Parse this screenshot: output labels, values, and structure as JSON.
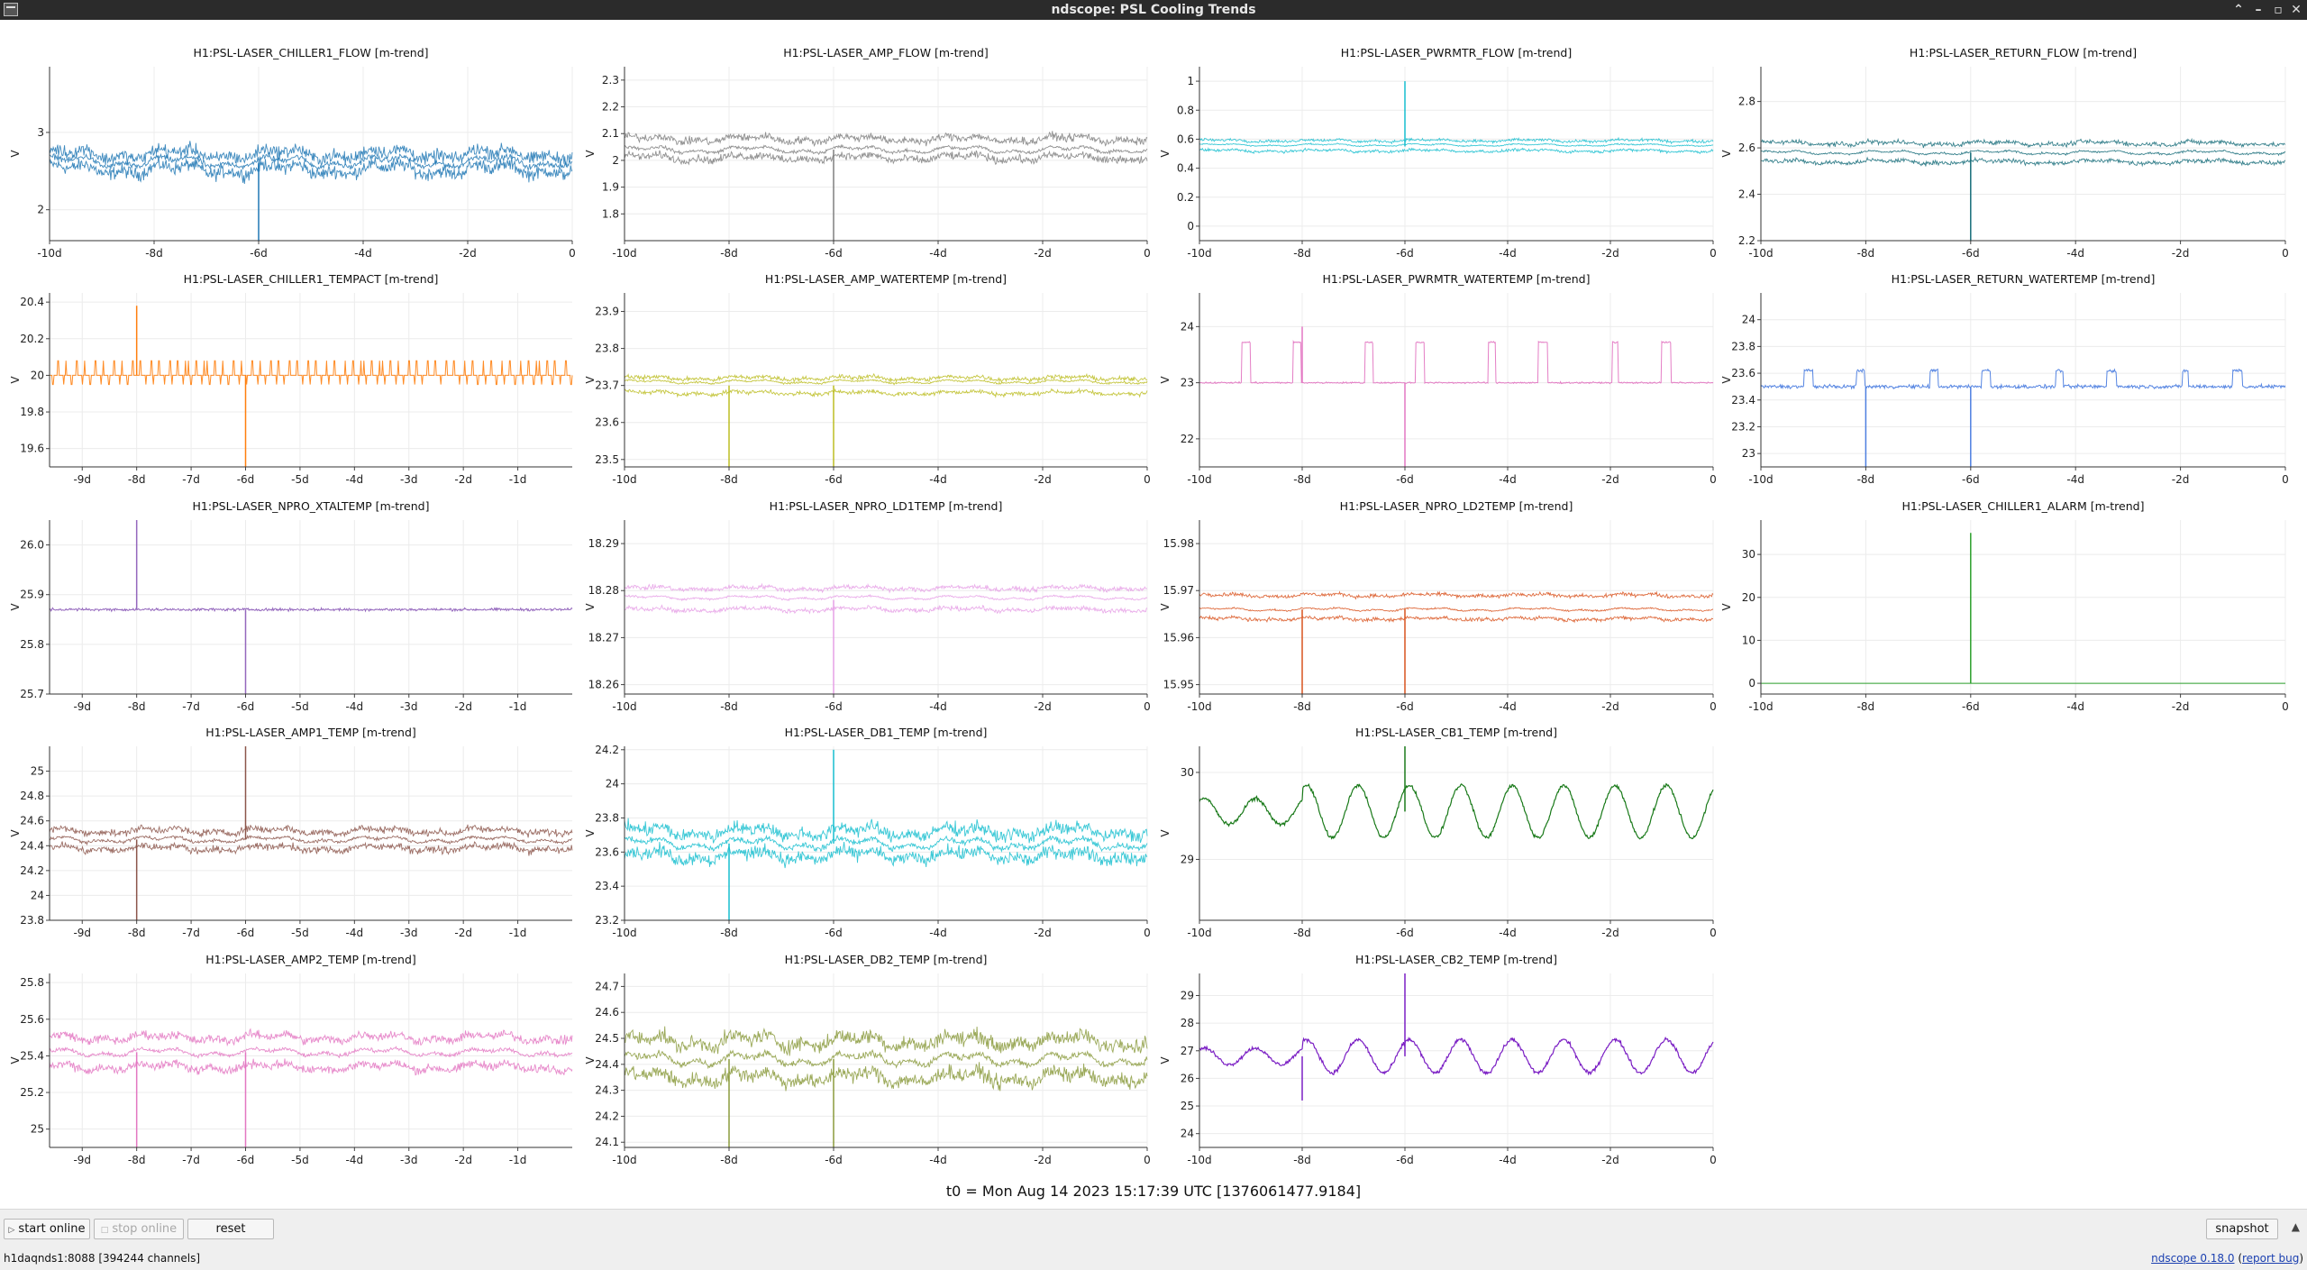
{
  "window": {
    "title": "ndscope: PSL Cooling Trends"
  },
  "footer": {
    "t0_text": "t0 = Mon Aug 14 2023 15:17:39 UTC [1376061477.9184]"
  },
  "buttons": {
    "start_online": "start online",
    "stop_online": "stop online",
    "reset": "reset",
    "snapshot": "snapshot"
  },
  "status": {
    "server": "h1daqnds1:8088  [394244 channels]",
    "version": "ndscope 0.18.0",
    "report_bug": "report bug"
  },
  "axis": {
    "ylabel": "V"
  },
  "plots": [
    {
      "title": "H1:PSL-LASER_CHILLER1_FLOW [m-trend]",
      "color": "#1f77b4",
      "ylim": [
        1.6,
        3.85
      ],
      "yticks": [
        "2",
        "3"
      ],
      "xticks": [
        "-10d",
        "-8d",
        "-6d",
        "-4d",
        "-2d",
        "0"
      ],
      "base": 2.6,
      "noise": 0.09,
      "style": "bands",
      "bands": [
        2.52,
        2.62,
        2.72
      ],
      "spikes": [
        [
          -6,
          1.6
        ]
      ]
    },
    {
      "title": "H1:PSL-LASER_AMP_FLOW [m-trend]",
      "color": "#7f7f7f",
      "ylim": [
        1.7,
        2.35
      ],
      "yticks": [
        "1.8",
        "1.9",
        "2",
        "2.1",
        "2.2",
        "2.3"
      ],
      "xticks": [
        "-10d",
        "-8d",
        "-6d",
        "-4d",
        "-2d",
        "0"
      ],
      "base": 2.04,
      "noise": 0.015,
      "style": "bands",
      "bands": [
        2.01,
        2.04,
        2.08
      ],
      "spikes": [
        [
          -6,
          1.7
        ]
      ]
    },
    {
      "title": "H1:PSL-LASER_PWRMTR_FLOW [m-trend]",
      "color": "#17becf",
      "ylim": [
        -0.1,
        1.1
      ],
      "yticks": [
        "0",
        "0.2",
        "0.4",
        "0.6",
        "0.8",
        "1"
      ],
      "xticks": [
        "-10d",
        "-8d",
        "-6d",
        "-4d",
        "-2d",
        "0"
      ],
      "base": 0.55,
      "noise": 0.01,
      "style": "bands",
      "bands": [
        0.52,
        0.56,
        0.59
      ],
      "spikes": [
        [
          -6,
          1.0
        ]
      ]
    },
    {
      "title": "H1:PSL-LASER_RETURN_FLOW [m-trend]",
      "color": "#176d7a",
      "ylim": [
        2.2,
        2.95
      ],
      "yticks": [
        "2.2",
        "2.4",
        "2.6",
        "2.8"
      ],
      "xticks": [
        "-10d",
        "-8d",
        "-6d",
        "-4d",
        "-2d",
        "0"
      ],
      "base": 2.58,
      "noise": 0.01,
      "style": "bands",
      "bands": [
        2.54,
        2.58,
        2.62
      ],
      "spikes": [
        [
          -6,
          2.2
        ]
      ]
    },
    {
      "title": "H1:PSL-LASER_CHILLER1_TEMPACT [m-trend]",
      "color": "#ff7f0e",
      "ylim": [
        19.5,
        20.45
      ],
      "yticks": [
        "19.6",
        "19.8",
        "20",
        "20.2",
        "20.4"
      ],
      "xticks": [
        "-9d",
        "-8d",
        "-7d",
        "-6d",
        "-5d",
        "-4d",
        "-3d",
        "-2d",
        "-1d"
      ],
      "base": 20.0,
      "noise": 0.0,
      "style": "steps",
      "levels": [
        19.95,
        20.0,
        20.08
      ],
      "spikes": [
        [
          -8,
          20.38
        ],
        [
          -6,
          19.5
        ]
      ]
    },
    {
      "title": "H1:PSL-LASER_AMP_WATERTEMP [m-trend]",
      "color": "#bcbd22",
      "ylim": [
        23.48,
        23.95
      ],
      "yticks": [
        "23.5",
        "23.6",
        "23.7",
        "23.8",
        "23.9"
      ],
      "xticks": [
        "-10d",
        "-8d",
        "-6d",
        "-4d",
        "-2d",
        "0"
      ],
      "base": 23.7,
      "noise": 0.006,
      "style": "bands",
      "bands": [
        23.68,
        23.71,
        23.72
      ],
      "spikes": [
        [
          -8,
          23.48
        ],
        [
          -6,
          23.48
        ]
      ]
    },
    {
      "title": "H1:PSL-LASER_PWRMTR_WATERTEMP [m-trend]",
      "color": "#e377c2",
      "ylim": [
        21.5,
        24.6
      ],
      "yticks": [
        "22",
        "23",
        "24"
      ],
      "xticks": [
        "-10d",
        "-8d",
        "-6d",
        "-4d",
        "-2d",
        "0"
      ],
      "base": 23.0,
      "noise": 0.02,
      "style": "pulses",
      "pulse": 23.72,
      "spikes": [
        [
          -8,
          24.0
        ],
        [
          -6,
          21.5
        ]
      ]
    },
    {
      "title": "H1:PSL-LASER_RETURN_WATERTEMP [m-trend]",
      "color": "#4e7fe0",
      "ylim": [
        22.9,
        24.2
      ],
      "yticks": [
        "23",
        "23.2",
        "23.4",
        "23.6",
        "23.8",
        "24"
      ],
      "xticks": [
        "-10d",
        "-8d",
        "-6d",
        "-4d",
        "-2d",
        "0"
      ],
      "base": 23.5,
      "noise": 0.02,
      "style": "pulses",
      "pulse": 23.62,
      "spikes": [
        [
          -8,
          22.9
        ],
        [
          -6,
          22.9
        ]
      ]
    },
    {
      "title": "H1:PSL-LASER_NPRO_XTALTEMP [m-trend]",
      "color": "#9467bd",
      "ylim": [
        25.7,
        26.05
      ],
      "yticks": [
        "25.7",
        "25.8",
        "25.9",
        "26.0"
      ],
      "xticks": [
        "-9d",
        "-8d",
        "-7d",
        "-6d",
        "-5d",
        "-4d",
        "-3d",
        "-2d",
        "-1d"
      ],
      "base": 25.87,
      "noise": 0.004,
      "style": "line",
      "spikes": [
        [
          -8,
          26.05
        ],
        [
          -6,
          25.7
        ]
      ]
    },
    {
      "title": "H1:PSL-LASER_NPRO_LD1TEMP [m-trend]",
      "color": "#e6a0e6",
      "ylim": [
        18.258,
        18.295
      ],
      "yticks": [
        "18.26",
        "18.27",
        "18.28",
        "18.29"
      ],
      "xticks": [
        "-10d",
        "-8d",
        "-6d",
        "-4d",
        "-2d",
        "0"
      ],
      "base": 18.278,
      "noise": 0.0005,
      "style": "bands",
      "bands": [
        18.276,
        18.2785,
        18.2805
      ],
      "spikes": [
        [
          -6,
          18.258
        ]
      ]
    },
    {
      "title": "H1:PSL-LASER_NPRO_LD2TEMP [m-trend]",
      "color": "#d9531e",
      "ylim": [
        15.948,
        15.985
      ],
      "yticks": [
        "15.95",
        "15.96",
        "15.97",
        "15.98"
      ],
      "xticks": [
        "-10d",
        "-8d",
        "-6d",
        "-4d",
        "-2d",
        "0"
      ],
      "base": 15.966,
      "noise": 0.0004,
      "style": "bands",
      "bands": [
        15.964,
        15.966,
        15.969
      ],
      "spikes": [
        [
          -6,
          15.948
        ],
        [
          -8,
          15.948
        ]
      ]
    },
    {
      "title": "H1:PSL-LASER_CHILLER1_ALARM [m-trend]",
      "color": "#2ca02c",
      "ylim": [
        -2.5,
        38
      ],
      "yticks": [
        "0",
        "10",
        "20",
        "30"
      ],
      "xticks": [
        "-10d",
        "-8d",
        "-6d",
        "-4d",
        "-2d",
        "0"
      ],
      "base": 0.0,
      "noise": 0.0,
      "style": "line",
      "spikes": [
        [
          -6,
          35
        ]
      ]
    },
    {
      "title": "H1:PSL-LASER_AMP1_TEMP [m-trend]",
      "color": "#8c564b",
      "ylim": [
        23.8,
        25.2
      ],
      "yticks": [
        "23.8",
        "24",
        "24.2",
        "24.4",
        "24.6",
        "24.8",
        "25"
      ],
      "xticks": [
        "-9d",
        "-8d",
        "-7d",
        "-6d",
        "-5d",
        "-4d",
        "-3d",
        "-2d",
        "-1d"
      ],
      "base": 24.45,
      "noise": 0.03,
      "style": "bands",
      "bands": [
        24.38,
        24.45,
        24.52
      ],
      "spikes": [
        [
          -6,
          25.2
        ],
        [
          -8,
          23.8
        ]
      ]
    },
    {
      "title": "H1:PSL-LASER_DB1_TEMP [m-trend]",
      "color": "#17becf",
      "ylim": [
        23.2,
        24.22
      ],
      "yticks": [
        "23.2",
        "23.4",
        "23.6",
        "23.8",
        "24",
        "24.2"
      ],
      "xticks": [
        "-10d",
        "-8d",
        "-6d",
        "-4d",
        "-2d",
        "0"
      ],
      "base": 23.65,
      "noise": 0.04,
      "style": "bands",
      "bands": [
        23.58,
        23.65,
        23.72
      ],
      "spikes": [
        [
          -6,
          24.2
        ],
        [
          -8,
          23.2
        ]
      ]
    },
    {
      "title": "H1:PSL-LASER_CB1_TEMP [m-trend]",
      "color": "#1a7a1a",
      "ylim": [
        28.3,
        30.3
      ],
      "yticks": [
        "29",
        "30"
      ],
      "xticks": [
        "-10d",
        "-8d",
        "-6d",
        "-4d",
        "-2d",
        "0"
      ],
      "base": 29.55,
      "noise": 0.03,
      "style": "wave",
      "amp": 0.3,
      "spikes": [
        [
          -6,
          30.3
        ]
      ]
    },
    null,
    {
      "title": "H1:PSL-LASER_AMP2_TEMP [m-trend]",
      "color": "#e377c2",
      "ylim": [
        24.9,
        25.85
      ],
      "yticks": [
        "25",
        "25.2",
        "25.4",
        "25.6",
        "25.8"
      ],
      "xticks": [
        "-9d",
        "-8d",
        "-7d",
        "-6d",
        "-5d",
        "-4d",
        "-3d",
        "-2d",
        "-1d"
      ],
      "base": 25.42,
      "noise": 0.025,
      "style": "bands",
      "bands": [
        25.34,
        25.42,
        25.5
      ],
      "spikes": [
        [
          -8,
          24.9
        ],
        [
          -6,
          24.9
        ]
      ]
    },
    {
      "title": "H1:PSL-LASER_DB2_TEMP [m-trend]",
      "color": "#8a9a3c",
      "ylim": [
        24.08,
        24.75
      ],
      "yticks": [
        "24.1",
        "24.2",
        "24.3",
        "24.4",
        "24.5",
        "24.6",
        "24.7"
      ],
      "xticks": [
        "-10d",
        "-8d",
        "-6d",
        "-4d",
        "-2d",
        "0"
      ],
      "base": 24.42,
      "noise": 0.03,
      "style": "bands",
      "bands": [
        24.35,
        24.42,
        24.49
      ],
      "spikes": [
        [
          -8,
          24.08
        ],
        [
          -6,
          24.08
        ]
      ]
    },
    {
      "title": "H1:PSL-LASER_CB2_TEMP [m-trend]",
      "color": "#7b1fc4",
      "ylim": [
        23.5,
        29.8
      ],
      "yticks": [
        "24",
        "25",
        "26",
        "27",
        "28",
        "29"
      ],
      "xticks": [
        "-10d",
        "-8d",
        "-6d",
        "-4d",
        "-2d",
        "0"
      ],
      "base": 26.8,
      "noise": 0.1,
      "style": "wave",
      "amp": 0.6,
      "spikes": [
        [
          -6,
          29.8
        ],
        [
          -8,
          25.2
        ]
      ]
    },
    null
  ]
}
